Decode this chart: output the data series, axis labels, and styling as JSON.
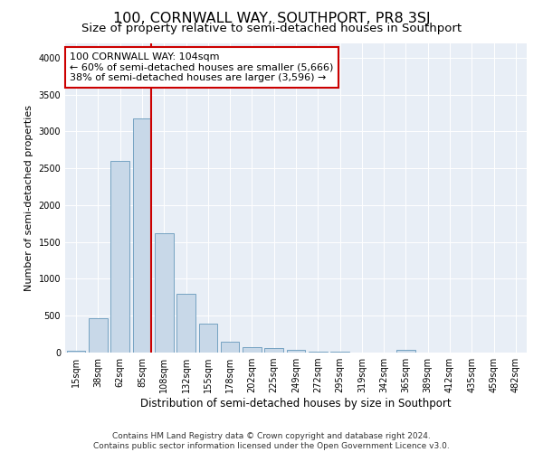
{
  "title": "100, CORNWALL WAY, SOUTHPORT, PR8 3SJ",
  "subtitle": "Size of property relative to semi-detached houses in Southport",
  "xlabel": "Distribution of semi-detached houses by size in Southport",
  "ylabel": "Number of semi-detached properties",
  "footer_line1": "Contains HM Land Registry data © Crown copyright and database right 2024.",
  "footer_line2": "Contains public sector information licensed under the Open Government Licence v3.0.",
  "annotation_line1": "100 CORNWALL WAY: 104sqm",
  "annotation_line2": "← 60% of semi-detached houses are smaller (5,666)",
  "annotation_line3": "38% of semi-detached houses are larger (3,596) →",
  "bar_color": "#c8d8e8",
  "bar_edge_color": "#6699bb",
  "vline_color": "#cc0000",
  "annotation_box_edge_color": "#cc0000",
  "background_color": "#e8eef6",
  "categories": [
    "15sqm",
    "38sqm",
    "62sqm",
    "85sqm",
    "108sqm",
    "132sqm",
    "155sqm",
    "178sqm",
    "202sqm",
    "225sqm",
    "249sqm",
    "272sqm",
    "295sqm",
    "319sqm",
    "342sqm",
    "365sqm",
    "389sqm",
    "412sqm",
    "435sqm",
    "459sqm",
    "482sqm"
  ],
  "bar_heights": [
    25,
    460,
    2600,
    3180,
    1620,
    800,
    390,
    145,
    75,
    65,
    40,
    18,
    10,
    5,
    3,
    40,
    2,
    0,
    0,
    0,
    0
  ],
  "vline_x": 3.42,
  "ylim": [
    0,
    4200
  ],
  "yticks": [
    0,
    500,
    1000,
    1500,
    2000,
    2500,
    3000,
    3500,
    4000
  ],
  "grid_color": "#ffffff",
  "title_fontsize": 11.5,
  "subtitle_fontsize": 9.5,
  "ylabel_fontsize": 8,
  "xlabel_fontsize": 8.5,
  "tick_fontsize": 7,
  "annotation_fontsize": 8,
  "footer_fontsize": 6.5
}
